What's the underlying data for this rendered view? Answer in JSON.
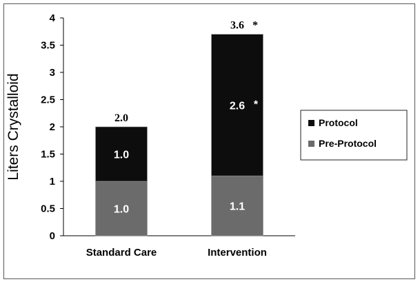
{
  "chart_data": {
    "type": "bar",
    "stacked": true,
    "ylabel": "Liters Crystalloid",
    "xlabel": "",
    "ylim": [
      0,
      4
    ],
    "yticks": [
      "0",
      "0.5",
      "1",
      "1.5",
      "2",
      "2.5",
      "3",
      "3.5",
      "4"
    ],
    "categories": [
      "Standard Care",
      "Intervention"
    ],
    "series": [
      {
        "name": "Pre-Protocol",
        "values": [
          1.0,
          1.1
        ],
        "labels": [
          "1.0",
          "1.1"
        ],
        "marks": [
          "",
          ""
        ],
        "color": "#6b6b6b"
      },
      {
        "name": "Protocol",
        "values": [
          1.0,
          2.6
        ],
        "labels": [
          "1.0",
          "2.6"
        ],
        "marks": [
          "",
          "*"
        ],
        "color": "#0d0d0d"
      }
    ],
    "totals": [
      "2.0",
      "3.6"
    ],
    "total_marks": [
      "",
      "*"
    ],
    "legend_position": "right",
    "legend_order": [
      "Protocol",
      "Pre-Protocol"
    ],
    "grid": false
  }
}
